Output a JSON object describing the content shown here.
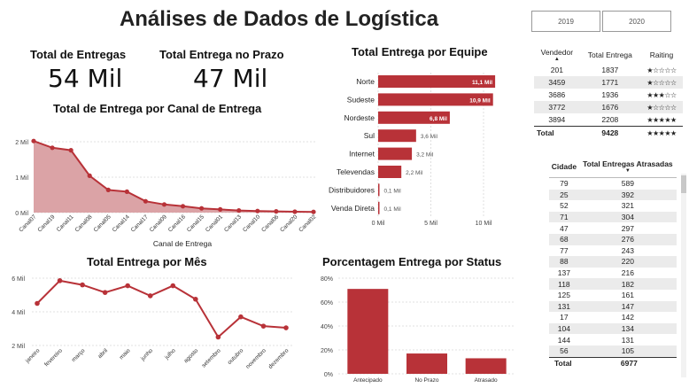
{
  "title": "Análises de Dados de Logística",
  "year_filters": [
    "2019",
    "2020"
  ],
  "kpis": {
    "total_label": "Total de Entregas",
    "total_value": "54 Mil",
    "prazo_label": "Total Entrega no Prazo",
    "prazo_value": "47 Mil"
  },
  "colors": {
    "accent": "#b83238",
    "area_fill": "#dba3a6",
    "grid": "#d8d8d8"
  },
  "charts": [
    {
      "id": "canal",
      "type": "area",
      "title": "Total de Entrega por Canal de Entrega",
      "xlabel": "Canal de Entrega",
      "ylabel": "",
      "ylim": [
        0,
        2000
      ],
      "yticks": [
        0,
        1000,
        2000
      ],
      "ytick_labels": [
        "0 Mil",
        "1 Mil",
        "2 Mil"
      ],
      "categories": [
        "Canal07",
        "Canal19",
        "Canal11",
        "Canal08",
        "Canal05",
        "Canal14",
        "Canal17",
        "Canal09",
        "Canal16",
        "Canal15",
        "Canal01",
        "Canal13",
        "Canal10",
        "Canal06",
        "Canal20",
        "Canal02"
      ],
      "values": [
        2020,
        1830,
        1760,
        1040,
        640,
        590,
        320,
        230,
        180,
        120,
        90,
        60,
        45,
        35,
        25,
        20
      ]
    },
    {
      "id": "equipe",
      "type": "bar",
      "title": "Total Entrega por Equipe",
      "xlabel": "",
      "xlim": [
        0,
        10000
      ],
      "xticks": [
        0,
        5000,
        10000
      ],
      "xtick_labels": [
        "0 Mil",
        "5 Mil",
        "10 Mil"
      ],
      "categories": [
        "Norte",
        "Sudeste",
        "Nordeste",
        "Sul",
        "Internet",
        "Televendas",
        "Distribuidores",
        "Venda Direta"
      ],
      "values": [
        11100,
        10900,
        6800,
        3600,
        3200,
        2200,
        100,
        100
      ],
      "data_labels": [
        "11,1 Mil",
        "10,9 Mil",
        "6,8 Mil",
        "3,6 Mil",
        "3,2 Mil",
        "2,2 Mil",
        "0,1 Mil",
        "0,1 Mil"
      ]
    },
    {
      "id": "mes",
      "type": "line",
      "title": "Total Entrega por Mês",
      "ylim": [
        2000,
        6000
      ],
      "yticks": [
        2000,
        4000,
        6000
      ],
      "ytick_labels": [
        "2 Mil",
        "4 Mil",
        "6 Mil"
      ],
      "categories": [
        "janeiro",
        "fevereiro",
        "março",
        "abril",
        "maio",
        "junho",
        "julho",
        "agosto",
        "setembro",
        "outubro",
        "novembro",
        "dezembro"
      ],
      "values": [
        4500,
        5850,
        5600,
        5150,
        5550,
        4950,
        5550,
        4750,
        2500,
        3700,
        3150,
        3050
      ]
    },
    {
      "id": "status",
      "type": "bar",
      "title": "Porcentagem Entrega por Status",
      "ylim": [
        0,
        80
      ],
      "yticks": [
        0,
        20,
        40,
        60,
        80
      ],
      "ytick_labels": [
        "0%",
        "20%",
        "40%",
        "60%",
        "80%"
      ],
      "categories": [
        "Antecipado",
        "No Prazo",
        "Atrasado"
      ],
      "values": [
        71,
        17,
        13
      ]
    }
  ],
  "vendedores": {
    "headers": [
      "Vendedor",
      "Total Entrega",
      "Raiting"
    ],
    "rows": [
      {
        "vendedor": "201",
        "total": "1837",
        "stars": "★☆☆☆☆"
      },
      {
        "vendedor": "3459",
        "total": "1771",
        "stars": "★☆☆☆☆"
      },
      {
        "vendedor": "3686",
        "total": "1936",
        "stars": "★★★☆☆"
      },
      {
        "vendedor": "3772",
        "total": "1676",
        "stars": "★☆☆☆☆"
      },
      {
        "vendedor": "3894",
        "total": "2208",
        "stars": "★★★★★"
      }
    ],
    "total_label": "Total",
    "total_value": "9428",
    "total_stars": "★★★★★"
  },
  "cidades": {
    "headers": [
      "Cidade",
      "Total Entregas Atrasadas"
    ],
    "rows": [
      [
        "79",
        "589"
      ],
      [
        "25",
        "392"
      ],
      [
        "52",
        "321"
      ],
      [
        "71",
        "304"
      ],
      [
        "47",
        "297"
      ],
      [
        "68",
        "276"
      ],
      [
        "77",
        "243"
      ],
      [
        "88",
        "220"
      ],
      [
        "137",
        "216"
      ],
      [
        "118",
        "182"
      ],
      [
        "125",
        "161"
      ],
      [
        "131",
        "147"
      ],
      [
        "17",
        "142"
      ],
      [
        "104",
        "134"
      ],
      [
        "144",
        "131"
      ],
      [
        "56",
        "105"
      ]
    ],
    "total_label": "Total",
    "total_value": "6977"
  }
}
